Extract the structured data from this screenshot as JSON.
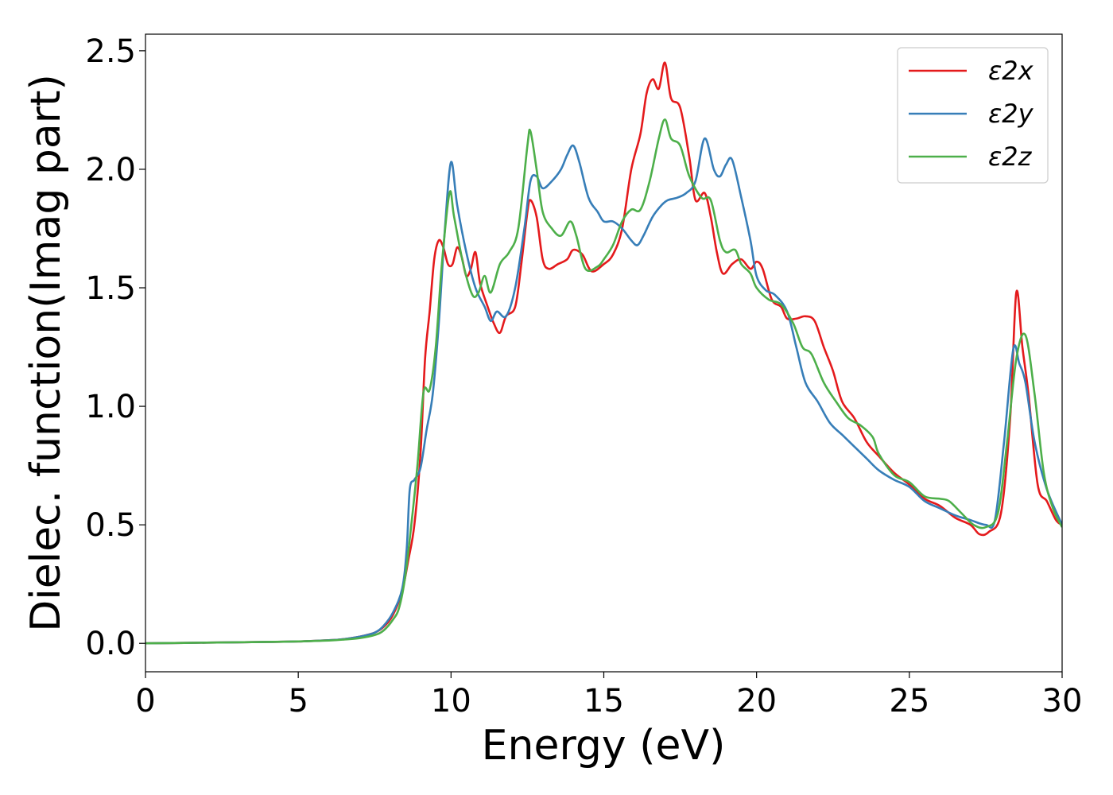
{
  "chart_data": {
    "type": "line",
    "title": "",
    "xlabel": "Energy (eV)",
    "ylabel": "Dielec. function(Imag part)",
    "xlim": [
      0,
      30
    ],
    "ylim": [
      -0.12,
      2.57
    ],
    "xticks": [
      0,
      5,
      10,
      15,
      20,
      25,
      30
    ],
    "xtick_labels": [
      "0",
      "5",
      "10",
      "15",
      "20",
      "25",
      "30"
    ],
    "yticks": [
      0.0,
      0.5,
      1.0,
      1.5,
      2.0,
      2.5
    ],
    "ytick_labels": [
      "0.0",
      "0.5",
      "1.0",
      "1.5",
      "2.0",
      "2.5"
    ],
    "grid": false,
    "legend_position": "top-right",
    "series": [
      {
        "name": "ε2x",
        "color": "#e41a1c",
        "points": [
          [
            0,
            0
          ],
          [
            2,
            0.003
          ],
          [
            4,
            0.006
          ],
          [
            5,
            0.008
          ],
          [
            6,
            0.013
          ],
          [
            6.5,
            0.018
          ],
          [
            7,
            0.028
          ],
          [
            7.5,
            0.045
          ],
          [
            7.8,
            0.07
          ],
          [
            8.1,
            0.12
          ],
          [
            8.4,
            0.22
          ],
          [
            8.6,
            0.35
          ],
          [
            8.8,
            0.5
          ],
          [
            9.0,
            0.8
          ],
          [
            9.15,
            1.2
          ],
          [
            9.3,
            1.4
          ],
          [
            9.45,
            1.62
          ],
          [
            9.6,
            1.7
          ],
          [
            9.75,
            1.67
          ],
          [
            9.9,
            1.6
          ],
          [
            10.05,
            1.6
          ],
          [
            10.2,
            1.67
          ],
          [
            10.35,
            1.63
          ],
          [
            10.5,
            1.55
          ],
          [
            10.65,
            1.58
          ],
          [
            10.8,
            1.65
          ],
          [
            10.95,
            1.52
          ],
          [
            11.2,
            1.42
          ],
          [
            11.4,
            1.35
          ],
          [
            11.6,
            1.31
          ],
          [
            11.8,
            1.38
          ],
          [
            12.1,
            1.42
          ],
          [
            12.3,
            1.6
          ],
          [
            12.5,
            1.82
          ],
          [
            12.6,
            1.87
          ],
          [
            12.8,
            1.8
          ],
          [
            13.0,
            1.62
          ],
          [
            13.2,
            1.58
          ],
          [
            13.5,
            1.6
          ],
          [
            13.8,
            1.62
          ],
          [
            14.0,
            1.66
          ],
          [
            14.3,
            1.64
          ],
          [
            14.6,
            1.57
          ],
          [
            15.0,
            1.6
          ],
          [
            15.3,
            1.64
          ],
          [
            15.6,
            1.75
          ],
          [
            15.9,
            2.0
          ],
          [
            16.2,
            2.15
          ],
          [
            16.4,
            2.32
          ],
          [
            16.6,
            2.38
          ],
          [
            16.8,
            2.34
          ],
          [
            17.0,
            2.45
          ],
          [
            17.2,
            2.3
          ],
          [
            17.5,
            2.26
          ],
          [
            17.8,
            2.05
          ],
          [
            18.0,
            1.87
          ],
          [
            18.3,
            1.9
          ],
          [
            18.5,
            1.8
          ],
          [
            18.7,
            1.65
          ],
          [
            18.9,
            1.56
          ],
          [
            19.2,
            1.6
          ],
          [
            19.5,
            1.62
          ],
          [
            19.8,
            1.58
          ],
          [
            20.0,
            1.61
          ],
          [
            20.2,
            1.58
          ],
          [
            20.5,
            1.45
          ],
          [
            20.8,
            1.42
          ],
          [
            21.0,
            1.37
          ],
          [
            21.3,
            1.37
          ],
          [
            21.6,
            1.38
          ],
          [
            21.9,
            1.36
          ],
          [
            22.2,
            1.25
          ],
          [
            22.5,
            1.15
          ],
          [
            22.8,
            1.02
          ],
          [
            23.2,
            0.95
          ],
          [
            23.6,
            0.85
          ],
          [
            24.0,
            0.79
          ],
          [
            24.5,
            0.72
          ],
          [
            25.0,
            0.67
          ],
          [
            25.5,
            0.61
          ],
          [
            26.0,
            0.58
          ],
          [
            26.5,
            0.53
          ],
          [
            27.0,
            0.5
          ],
          [
            27.3,
            0.46
          ],
          [
            27.6,
            0.47
          ],
          [
            28.0,
            0.55
          ],
          [
            28.3,
            0.95
          ],
          [
            28.5,
            1.48
          ],
          [
            28.7,
            1.25
          ],
          [
            28.9,
            1.05
          ],
          [
            29.2,
            0.67
          ],
          [
            29.5,
            0.6
          ],
          [
            29.8,
            0.52
          ],
          [
            30,
            0.5
          ]
        ]
      },
      {
        "name": "ε2y",
        "color": "#377eb8",
        "points": [
          [
            0,
            0
          ],
          [
            2,
            0.003
          ],
          [
            4,
            0.006
          ],
          [
            5,
            0.008
          ],
          [
            6,
            0.013
          ],
          [
            6.5,
            0.018
          ],
          [
            7,
            0.028
          ],
          [
            7.5,
            0.045
          ],
          [
            7.8,
            0.075
          ],
          [
            8.1,
            0.13
          ],
          [
            8.4,
            0.23
          ],
          [
            8.55,
            0.4
          ],
          [
            8.65,
            0.65
          ],
          [
            8.8,
            0.69
          ],
          [
            9.0,
            0.74
          ],
          [
            9.2,
            0.9
          ],
          [
            9.4,
            1.05
          ],
          [
            9.6,
            1.35
          ],
          [
            9.8,
            1.75
          ],
          [
            10.0,
            2.03
          ],
          [
            10.2,
            1.85
          ],
          [
            10.5,
            1.65
          ],
          [
            10.8,
            1.5
          ],
          [
            11.1,
            1.42
          ],
          [
            11.3,
            1.36
          ],
          [
            11.5,
            1.4
          ],
          [
            11.8,
            1.38
          ],
          [
            12.1,
            1.5
          ],
          [
            12.4,
            1.75
          ],
          [
            12.6,
            1.95
          ],
          [
            12.8,
            1.97
          ],
          [
            13.0,
            1.92
          ],
          [
            13.3,
            1.95
          ],
          [
            13.6,
            2.0
          ],
          [
            13.8,
            2.06
          ],
          [
            14.0,
            2.1
          ],
          [
            14.2,
            2.03
          ],
          [
            14.5,
            1.88
          ],
          [
            14.8,
            1.82
          ],
          [
            15.0,
            1.78
          ],
          [
            15.3,
            1.78
          ],
          [
            15.6,
            1.75
          ],
          [
            15.9,
            1.7
          ],
          [
            16.1,
            1.68
          ],
          [
            16.3,
            1.72
          ],
          [
            16.6,
            1.8
          ],
          [
            16.9,
            1.85
          ],
          [
            17.1,
            1.87
          ],
          [
            17.4,
            1.88
          ],
          [
            17.7,
            1.9
          ],
          [
            18.0,
            1.95
          ],
          [
            18.3,
            2.13
          ],
          [
            18.6,
            2.0
          ],
          [
            18.8,
            1.97
          ],
          [
            19.0,
            2.02
          ],
          [
            19.2,
            2.04
          ],
          [
            19.5,
            1.88
          ],
          [
            19.8,
            1.7
          ],
          [
            20.0,
            1.55
          ],
          [
            20.3,
            1.49
          ],
          [
            20.6,
            1.47
          ],
          [
            21.0,
            1.4
          ],
          [
            21.3,
            1.25
          ],
          [
            21.6,
            1.1
          ],
          [
            22.0,
            1.02
          ],
          [
            22.4,
            0.93
          ],
          [
            22.8,
            0.88
          ],
          [
            23.2,
            0.83
          ],
          [
            23.6,
            0.78
          ],
          [
            24.0,
            0.73
          ],
          [
            24.5,
            0.69
          ],
          [
            25.0,
            0.66
          ],
          [
            25.5,
            0.6
          ],
          [
            26.0,
            0.57
          ],
          [
            26.5,
            0.54
          ],
          [
            27.0,
            0.52
          ],
          [
            27.5,
            0.5
          ],
          [
            27.8,
            0.52
          ],
          [
            28.1,
            0.85
          ],
          [
            28.4,
            1.24
          ],
          [
            28.6,
            1.18
          ],
          [
            28.8,
            1.1
          ],
          [
            29.1,
            0.85
          ],
          [
            29.5,
            0.65
          ],
          [
            30,
            0.5
          ]
        ]
      },
      {
        "name": "ε2z",
        "color": "#4daf4a",
        "points": [
          [
            0,
            0
          ],
          [
            2,
            0.003
          ],
          [
            4,
            0.006
          ],
          [
            5,
            0.008
          ],
          [
            6,
            0.012
          ],
          [
            6.5,
            0.016
          ],
          [
            7,
            0.022
          ],
          [
            7.5,
            0.035
          ],
          [
            7.8,
            0.055
          ],
          [
            8.1,
            0.1
          ],
          [
            8.3,
            0.15
          ],
          [
            8.5,
            0.28
          ],
          [
            8.7,
            0.5
          ],
          [
            8.9,
            0.75
          ],
          [
            9.1,
            1.06
          ],
          [
            9.3,
            1.07
          ],
          [
            9.5,
            1.25
          ],
          [
            9.7,
            1.6
          ],
          [
            9.95,
            1.9
          ],
          [
            10.1,
            1.8
          ],
          [
            10.4,
            1.6
          ],
          [
            10.7,
            1.47
          ],
          [
            10.9,
            1.48
          ],
          [
            11.1,
            1.55
          ],
          [
            11.3,
            1.48
          ],
          [
            11.6,
            1.6
          ],
          [
            11.9,
            1.65
          ],
          [
            12.2,
            1.75
          ],
          [
            12.5,
            2.1
          ],
          [
            12.6,
            2.16
          ],
          [
            12.8,
            2.0
          ],
          [
            13.0,
            1.82
          ],
          [
            13.3,
            1.75
          ],
          [
            13.6,
            1.72
          ],
          [
            13.9,
            1.78
          ],
          [
            14.1,
            1.72
          ],
          [
            14.4,
            1.58
          ],
          [
            14.8,
            1.59
          ],
          [
            15.0,
            1.62
          ],
          [
            15.3,
            1.68
          ],
          [
            15.6,
            1.78
          ],
          [
            15.9,
            1.83
          ],
          [
            16.2,
            1.83
          ],
          [
            16.5,
            1.95
          ],
          [
            16.8,
            2.13
          ],
          [
            17.0,
            2.21
          ],
          [
            17.2,
            2.13
          ],
          [
            17.5,
            2.1
          ],
          [
            17.8,
            1.97
          ],
          [
            18.2,
            1.88
          ],
          [
            18.5,
            1.87
          ],
          [
            18.8,
            1.7
          ],
          [
            19.0,
            1.65
          ],
          [
            19.3,
            1.66
          ],
          [
            19.5,
            1.6
          ],
          [
            19.8,
            1.56
          ],
          [
            20.0,
            1.5
          ],
          [
            20.4,
            1.45
          ],
          [
            20.8,
            1.43
          ],
          [
            21.2,
            1.35
          ],
          [
            21.5,
            1.25
          ],
          [
            21.8,
            1.22
          ],
          [
            22.2,
            1.1
          ],
          [
            22.6,
            1.02
          ],
          [
            23.0,
            0.95
          ],
          [
            23.4,
            0.92
          ],
          [
            23.8,
            0.87
          ],
          [
            24.0,
            0.8
          ],
          [
            24.5,
            0.71
          ],
          [
            25.0,
            0.68
          ],
          [
            25.5,
            0.62
          ],
          [
            26.0,
            0.61
          ],
          [
            26.3,
            0.6
          ],
          [
            26.7,
            0.55
          ],
          [
            27.1,
            0.5
          ],
          [
            27.5,
            0.49
          ],
          [
            27.9,
            0.55
          ],
          [
            28.2,
            0.85
          ],
          [
            28.5,
            1.2
          ],
          [
            28.8,
            1.3
          ],
          [
            29.1,
            1.05
          ],
          [
            29.4,
            0.72
          ],
          [
            29.7,
            0.57
          ],
          [
            30,
            0.49
          ]
        ]
      }
    ]
  }
}
